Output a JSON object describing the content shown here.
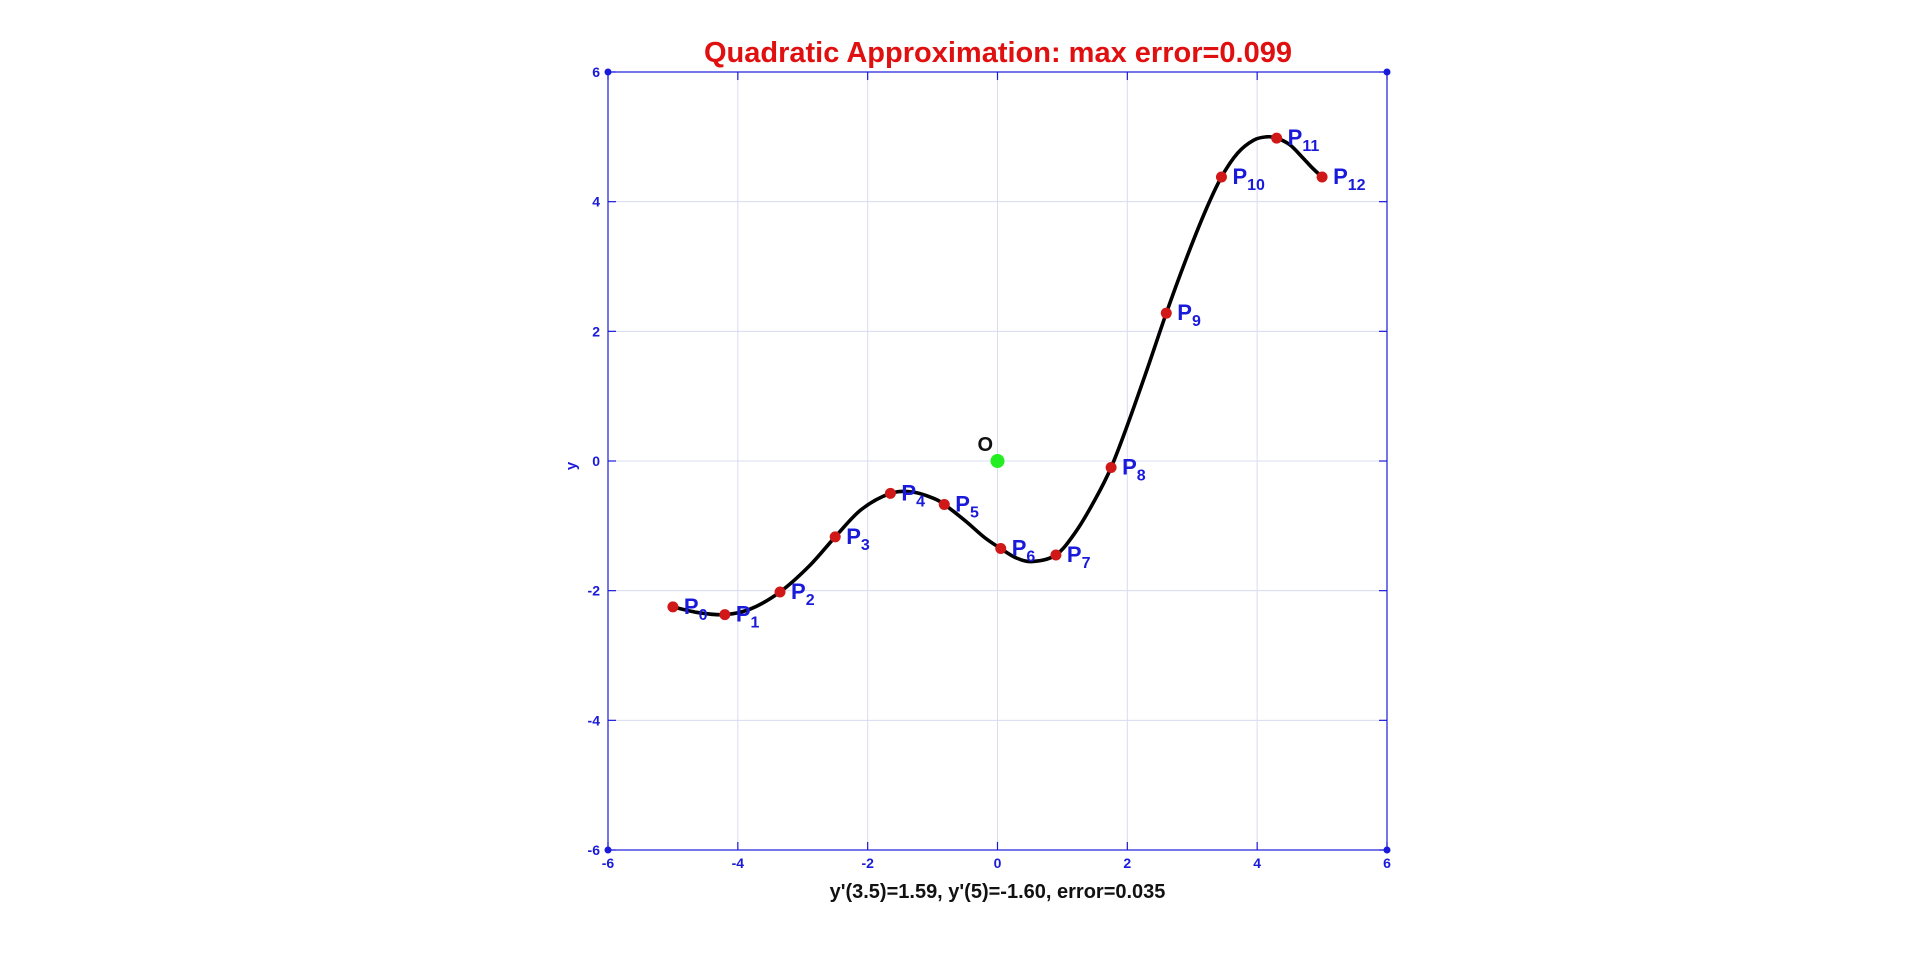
{
  "chart_data": {
    "type": "line",
    "title": "Quadratic Approximation:   max error=0.099",
    "xlabel": "y'(3.5)=1.59,    y'(5)=-1.60,   error=0.035",
    "ylabel": "y",
    "xlim": [
      -6,
      6
    ],
    "ylim": [
      -6,
      6
    ],
    "x_ticks": [
      "-6",
      "-4",
      "-2",
      "0",
      "2",
      "4",
      "6"
    ],
    "y_ticks": [
      "-6",
      "-4",
      "-2",
      "0",
      "2",
      "4",
      "6"
    ],
    "grid": true,
    "colors": {
      "title": "#e01010",
      "axes": "#1a1adb",
      "grid": "#d8dcf0",
      "curve": "#000000",
      "points": "#d01818",
      "labels": "#1a1adb",
      "origin": "#22ee22"
    },
    "points": [
      {
        "name": "P",
        "sub": "0",
        "x": -5.0,
        "y": -2.25
      },
      {
        "name": "P",
        "sub": "1",
        "x": -4.2,
        "y": -2.37
      },
      {
        "name": "P",
        "sub": "2",
        "x": -3.35,
        "y": -2.02
      },
      {
        "name": "P",
        "sub": "3",
        "x": -2.5,
        "y": -1.17
      },
      {
        "name": "P",
        "sub": "4",
        "x": -1.65,
        "y": -0.5
      },
      {
        "name": "P",
        "sub": "5",
        "x": -0.82,
        "y": -0.67
      },
      {
        "name": "P",
        "sub": "6",
        "x": 0.05,
        "y": -1.35
      },
      {
        "name": "P",
        "sub": "7",
        "x": 0.9,
        "y": -1.45
      },
      {
        "name": "P",
        "sub": "8",
        "x": 1.75,
        "y": -0.1
      },
      {
        "name": "P",
        "sub": "9",
        "x": 2.6,
        "y": 2.28
      },
      {
        "name": "P",
        "sub": "10",
        "x": 3.45,
        "y": 4.38
      },
      {
        "name": "P",
        "sub": "11",
        "x": 4.3,
        "y": 4.98
      },
      {
        "name": "P",
        "sub": "12",
        "x": 5.0,
        "y": 4.38
      }
    ],
    "curve": {
      "x": [
        -5.0,
        -4.6,
        -4.2,
        -3.8,
        -3.35,
        -2.9,
        -2.5,
        -2.1,
        -1.65,
        -1.3,
        -1.0,
        -0.82,
        -0.5,
        -0.2,
        0.05,
        0.3,
        0.55,
        0.9,
        1.2,
        1.5,
        1.75,
        2.0,
        2.3,
        2.6,
        2.9,
        3.2,
        3.45,
        3.7,
        3.95,
        4.15,
        4.3,
        4.5,
        4.7,
        4.85,
        5.0
      ],
      "y": [
        -2.25,
        -2.34,
        -2.37,
        -2.28,
        -2.02,
        -1.62,
        -1.17,
        -0.75,
        -0.5,
        -0.48,
        -0.57,
        -0.67,
        -0.92,
        -1.18,
        -1.35,
        -1.5,
        -1.55,
        -1.45,
        -1.1,
        -0.6,
        -0.1,
        0.55,
        1.4,
        2.28,
        3.1,
        3.85,
        4.38,
        4.75,
        4.95,
        5.0,
        4.98,
        4.88,
        4.68,
        4.52,
        4.38
      ]
    },
    "origin": {
      "label": "O",
      "x": 0,
      "y": 0
    }
  }
}
